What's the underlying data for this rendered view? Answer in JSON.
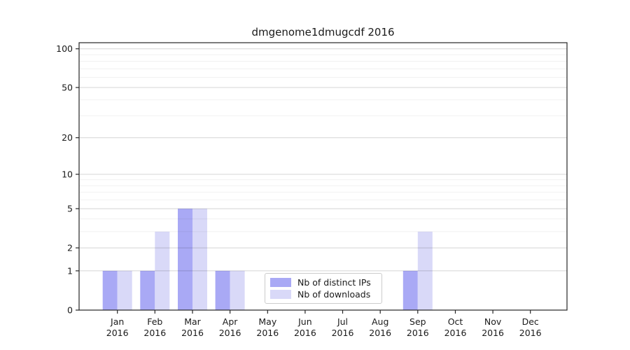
{
  "chart_data": {
    "type": "bar",
    "title": "dmgenome1dmugcdf 2016",
    "xlabel": "",
    "ylabel": "",
    "categories": [
      "Jan",
      "Feb",
      "Mar",
      "Apr",
      "May",
      "Jun",
      "Jul",
      "Aug",
      "Sep",
      "Oct",
      "Nov",
      "Dec"
    ],
    "x_year_label": "2016",
    "series": [
      {
        "name": "Nb of distinct IPs",
        "color": "#a9a9f5",
        "values": [
          1,
          1,
          5,
          1,
          0,
          0,
          0,
          0,
          1,
          0,
          0,
          0
        ]
      },
      {
        "name": "Nb of downloads",
        "color": "#d9d9f8",
        "values": [
          1,
          3,
          5,
          1,
          0,
          0,
          0,
          0,
          3,
          0,
          0,
          0
        ]
      }
    ],
    "y_axis": {
      "scale": "log10(1+x)",
      "major_ticks": [
        0,
        1,
        2,
        5,
        10,
        20,
        50,
        100
      ],
      "minor_gridlines": [
        3,
        4,
        6,
        7,
        8,
        9,
        30,
        40,
        60,
        70,
        80,
        90
      ],
      "ylim": [
        0,
        112
      ]
    },
    "legend": {
      "position": "lower center",
      "labels": [
        "Nb of distinct IPs",
        "Nb of downloads"
      ]
    },
    "grid": "horizontal",
    "colors": {
      "axis": "#262626",
      "text": "#1a1a1a",
      "major_grid": "rgba(0,0,0,0.17)",
      "minor_grid": "rgba(0,0,0,0.055)",
      "background": "#ffffff"
    }
  }
}
